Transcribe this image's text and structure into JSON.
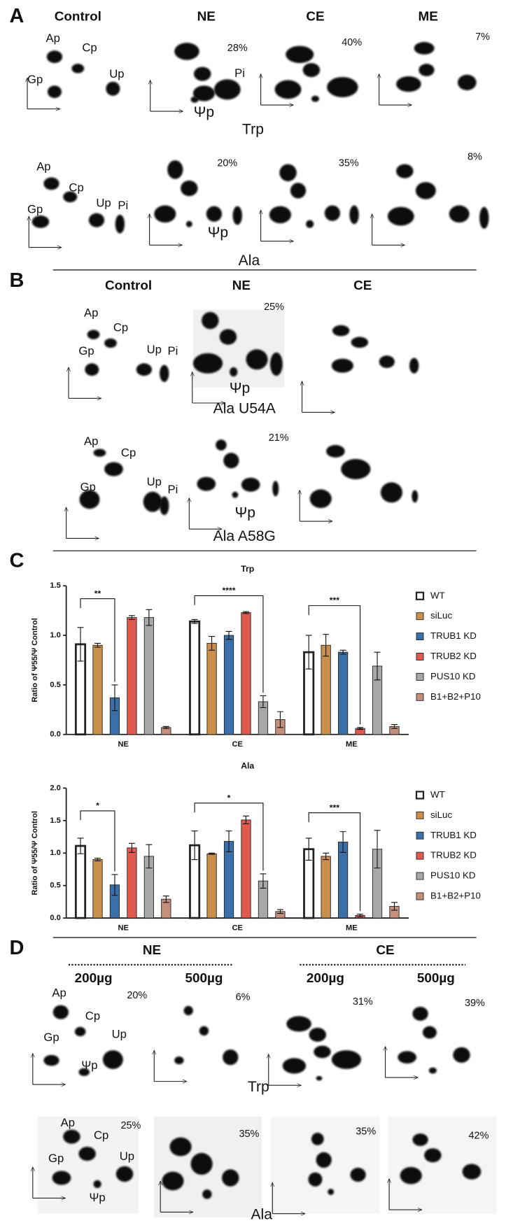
{
  "panel_a": {
    "letter": "A",
    "columns": [
      "Control",
      "NE",
      "CE",
      "ME"
    ],
    "trp": {
      "spots": [
        "Ap",
        "Cp",
        "Gp",
        "Up"
      ],
      "pi": "Pi",
      "psi": "Ψp",
      "percents": [
        "28%",
        "40%",
        "7%"
      ],
      "label": "Trp"
    },
    "ala": {
      "spots": [
        "Ap",
        "Cp",
        "Gp",
        "Up",
        "Pi"
      ],
      "psi": "Ψp",
      "percents": [
        "20%",
        "35%",
        "8%"
      ],
      "label": "Ala"
    }
  },
  "panel_b": {
    "letter": "B",
    "columns": [
      "Control",
      "NE",
      "CE"
    ],
    "u54a": {
      "spots": [
        "Ap",
        "Cp",
        "Gp",
        "Up",
        "Pi"
      ],
      "psi": "Ψp",
      "percent": "25%",
      "label": "Ala U54A"
    },
    "a58g": {
      "spots": [
        "Ap",
        "Cp",
        "Gp",
        "Up",
        "Pi"
      ],
      "psi": "Ψp",
      "percent": "21%",
      "label": "Ala A58G"
    }
  },
  "panel_c": {
    "letter": "C"
  },
  "chart_data": [
    {
      "type": "bar",
      "title": "Trp",
      "ylabel": "Ratio of Ψ55/Ψ Control",
      "categories": [
        "NE",
        "CE",
        "ME"
      ],
      "series": [
        {
          "name": "WT",
          "color": "#ffffff",
          "values": [
            0.91,
            1.14,
            0.83
          ],
          "errors": [
            0.17,
            0.02,
            0.17
          ]
        },
        {
          "name": "siLuc",
          "color": "#c8904a",
          "values": [
            0.9,
            0.92,
            0.9
          ],
          "errors": [
            0.02,
            0.07,
            0.11
          ]
        },
        {
          "name": "TRUB1 KD",
          "color": "#3a6fa8",
          "values": [
            0.37,
            1.0,
            0.83
          ],
          "errors": [
            0.13,
            0.04,
            0.02
          ]
        },
        {
          "name": "TRUB2 KD",
          "color": "#e05a50",
          "values": [
            1.18,
            1.23,
            0.06
          ],
          "errors": [
            0.02,
            0.01,
            0.01
          ]
        },
        {
          "name": "PUS10 KD",
          "color": "#a8a8a8",
          "values": [
            1.18,
            0.33,
            0.69
          ],
          "errors": [
            0.08,
            0.06,
            0.14
          ]
        },
        {
          "name": "B1+B2+P10",
          "color": "#c4907c",
          "values": [
            0.07,
            0.15,
            0.08
          ],
          "errors": [
            0.01,
            0.08,
            0.02
          ]
        }
      ],
      "ylim": [
        0,
        1.5
      ],
      "yticks": [
        {
          "value": 0,
          "label": "0.0"
        },
        0.5,
        {
          "value": 1,
          "label": "1.0"
        },
        1.5
      ],
      "significance": [
        {
          "label": "**",
          "category": "NE",
          "from": "WT",
          "to": "TRUB1 KD",
          "y": 1.37
        },
        {
          "label": "****",
          "category": "CE",
          "from": "WT",
          "to": "PUS10 KD",
          "y": 1.4
        },
        {
          "label": "***",
          "category": "ME",
          "from": "WT",
          "to": "TRUB2 KD",
          "y": 1.3
        }
      ]
    },
    {
      "type": "bar",
      "title": "Ala",
      "ylabel": "Ratio of Ψ55/Ψ Control",
      "categories": [
        "NE",
        "CE",
        "ME"
      ],
      "series": [
        {
          "name": "WT",
          "color": "#ffffff",
          "values": [
            1.11,
            1.12,
            1.06
          ],
          "errors": [
            0.12,
            0.22,
            0.17
          ]
        },
        {
          "name": "siLuc",
          "color": "#c8904a",
          "values": [
            0.9,
            0.99,
            0.95
          ],
          "errors": [
            0.02,
            0.01,
            0.05
          ]
        },
        {
          "name": "TRUB1 KD",
          "color": "#3a6fa8",
          "values": [
            0.51,
            1.18,
            1.17
          ],
          "errors": [
            0.16,
            0.16,
            0.16
          ]
        },
        {
          "name": "TRUB2 KD",
          "color": "#e05a50",
          "values": [
            1.08,
            1.51,
            0.04
          ],
          "errors": [
            0.07,
            0.06,
            0.02
          ]
        },
        {
          "name": "PUS10 KD",
          "color": "#a8a8a8",
          "values": [
            0.95,
            0.57,
            1.06
          ],
          "errors": [
            0.18,
            0.11,
            0.29
          ]
        },
        {
          "name": "B1+B2+P10",
          "color": "#c4907c",
          "values": [
            0.29,
            0.1,
            0.18
          ],
          "errors": [
            0.05,
            0.03,
            0.06
          ]
        }
      ],
      "ylim": [
        0,
        2
      ],
      "yticks": [
        {
          "value": 0,
          "label": "0.0"
        },
        0.5,
        {
          "value": 1,
          "label": "1.0"
        },
        1.5,
        {
          "value": 2,
          "label": "2.0"
        }
      ],
      "significance": [
        {
          "label": "*",
          "category": "NE",
          "from": "WT",
          "to": "TRUB1 KD",
          "y": 1.65
        },
        {
          "label": "*",
          "category": "CE",
          "from": "WT",
          "to": "PUS10 KD",
          "y": 1.77
        },
        {
          "label": "***",
          "category": "ME",
          "from": "WT",
          "to": "TRUB2 KD",
          "y": 1.62
        }
      ]
    }
  ],
  "panel_d": {
    "letter": "D",
    "groups": [
      "NE",
      "CE"
    ],
    "doses": [
      "200µg",
      "500µg",
      "200µg",
      "500µg"
    ],
    "trp": {
      "spots": [
        "Ap",
        "Cp",
        "Gp",
        "Up"
      ],
      "psi": "Ψp",
      "percents": [
        "20%",
        "6%",
        "31%",
        "39%"
      ],
      "label": "Trp"
    },
    "ala": {
      "spots": [
        "Ap",
        "Cp",
        "Gp",
        "Up"
      ],
      "psi": "Ψp",
      "percents": [
        "25%",
        "35%",
        "35%",
        "42%"
      ],
      "label": "Ala"
    }
  }
}
